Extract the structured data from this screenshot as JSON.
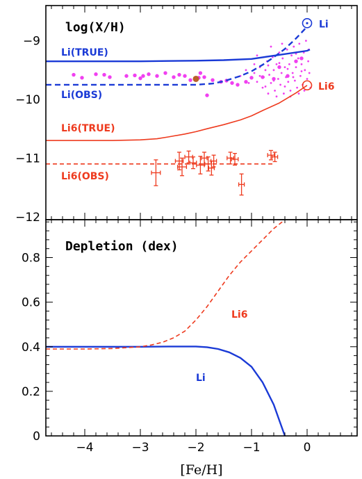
{
  "colors": {
    "li": "#1a3ad6",
    "li6": "#ee3a1e",
    "points": "#f040f0",
    "sun": "#b8602a"
  },
  "chart_data": [
    {
      "type": "line",
      "title": "log(X/H)",
      "xlim": [
        -4.7,
        0.9
      ],
      "ylim": [
        -12.05,
        -8.4
      ],
      "xticks": [
        -4,
        -3,
        -2,
        -1,
        0
      ],
      "yticks": [
        -12,
        -11,
        -10,
        -9
      ],
      "ytick_labels": [
        "−12",
        "−11",
        "−10",
        "−9"
      ],
      "series": [
        {
          "name": "Li(TRUE)",
          "style": "solid",
          "color": "li",
          "x": [
            -4.7,
            -4.0,
            -3.5,
            -3.0,
            -2.5,
            -2.0,
            -1.5,
            -1.0,
            -0.5,
            0.0,
            0.05
          ],
          "y": [
            -9.35,
            -9.35,
            -9.35,
            -9.35,
            -9.345,
            -9.34,
            -9.33,
            -9.31,
            -9.24,
            -9.17,
            -9.15
          ]
        },
        {
          "name": "Li(OBS)",
          "style": "dashed",
          "color": "li",
          "x": [
            -4.7,
            -4.0,
            -3.0,
            -2.5,
            -2.0,
            -1.7,
            -1.5,
            -1.2,
            -1.0,
            -0.8,
            -0.6,
            -0.4,
            -0.2,
            -0.05,
            0.0
          ],
          "y": [
            -9.75,
            -9.75,
            -9.75,
            -9.75,
            -9.75,
            -9.73,
            -9.69,
            -9.6,
            -9.52,
            -9.41,
            -9.28,
            -9.14,
            -8.96,
            -8.81,
            -8.75
          ]
        },
        {
          "name": "Li6(TRUE)",
          "style": "solid",
          "color": "li6",
          "x": [
            -4.7,
            -4.0,
            -3.5,
            -3.0,
            -2.7,
            -2.5,
            -2.2,
            -2.0,
            -1.8,
            -1.5,
            -1.2,
            -1.0,
            -0.8,
            -0.5,
            -0.2,
            0.0
          ],
          "y": [
            -10.7,
            -10.7,
            -10.7,
            -10.69,
            -10.67,
            -10.64,
            -10.59,
            -10.55,
            -10.5,
            -10.43,
            -10.35,
            -10.28,
            -10.19,
            -10.06,
            -9.89,
            -9.76
          ]
        },
        {
          "name": "Li6(OBS)",
          "style": "dashed",
          "color": "li6",
          "x": [
            -4.7,
            -0.6
          ],
          "y": [
            -11.1,
            -11.1
          ]
        }
      ],
      "markers": [
        {
          "label": "Li",
          "x": 0.0,
          "y": -8.7,
          "color": "li"
        },
        {
          "label": "Li6",
          "x": 0.0,
          "y": -9.76,
          "color": "li6"
        }
      ],
      "sun_point": {
        "x": -2.0,
        "y": -9.65
      },
      "li6_obs_points": [
        {
          "x": -2.72,
          "y": -11.25,
          "xerr": 0.08,
          "yerr": 0.22
        },
        {
          "x": -2.3,
          "y": -11.05,
          "xerr": 0.07,
          "yerr": 0.15
        },
        {
          "x": -2.25,
          "y": -11.15,
          "xerr": 0.08,
          "yerr": 0.15
        },
        {
          "x": -2.13,
          "y": -10.98,
          "xerr": 0.07,
          "yerr": 0.1
        },
        {
          "x": -2.05,
          "y": -11.08,
          "xerr": 0.06,
          "yerr": 0.1
        },
        {
          "x": -1.92,
          "y": -11.12,
          "xerr": 0.07,
          "yerr": 0.15
        },
        {
          "x": -1.85,
          "y": -11.0,
          "xerr": 0.05,
          "yerr": 0.1
        },
        {
          "x": -1.78,
          "y": -11.1,
          "xerr": 0.06,
          "yerr": 0.12
        },
        {
          "x": -1.72,
          "y": -11.17,
          "xerr": 0.05,
          "yerr": 0.12
        },
        {
          "x": -1.68,
          "y": -11.05,
          "xerr": 0.05,
          "yerr": 0.1
        },
        {
          "x": -1.38,
          "y": -11.0,
          "xerr": 0.06,
          "yerr": 0.1
        },
        {
          "x": -1.3,
          "y": -11.02,
          "xerr": 0.06,
          "yerr": 0.1
        },
        {
          "x": -1.18,
          "y": -11.45,
          "xerr": 0.05,
          "yerr": 0.18
        },
        {
          "x": -0.65,
          "y": -10.95,
          "xerr": 0.06,
          "yerr": 0.08
        },
        {
          "x": -0.58,
          "y": -10.98,
          "xerr": 0.05,
          "yerr": 0.08
        }
      ],
      "li_obs_points_large": [
        [
          -4.2,
          -9.58
        ],
        [
          -4.05,
          -9.63
        ],
        [
          -3.8,
          -9.57
        ],
        [
          -3.55,
          -9.62
        ],
        [
          -3.25,
          -9.6
        ],
        [
          -3.1,
          -9.59
        ],
        [
          -3.0,
          -9.64
        ],
        [
          -2.85,
          -9.57
        ],
        [
          -2.7,
          -9.6
        ],
        [
          -2.55,
          -9.55
        ],
        [
          -2.4,
          -9.62
        ],
        [
          -2.3,
          -9.58
        ],
        [
          -2.2,
          -9.6
        ],
        [
          -2.1,
          -9.67
        ],
        [
          -1.95,
          -9.63
        ],
        [
          -1.85,
          -9.62
        ],
        [
          -1.8,
          -9.93
        ],
        [
          -1.7,
          -9.67
        ],
        [
          -1.55,
          -9.7
        ],
        [
          -1.45,
          -9.68
        ],
        [
          -1.35,
          -9.72
        ],
        [
          -1.25,
          -9.75
        ],
        [
          -1.1,
          -9.7
        ],
        [
          -1.0,
          -9.63
        ],
        [
          -0.8,
          -9.62
        ],
        [
          -0.6,
          -9.65
        ],
        [
          -0.5,
          -9.45
        ],
        [
          -0.35,
          -9.6
        ],
        [
          -0.2,
          -9.35
        ],
        [
          -0.1,
          -9.3
        ],
        [
          -1.92,
          -9.55
        ],
        [
          -2.95,
          -9.6
        ],
        [
          -3.65,
          -9.58
        ]
      ],
      "li_obs_points_small": [
        [
          -0.95,
          -9.55
        ],
        [
          -0.9,
          -9.7
        ],
        [
          -0.85,
          -9.45
        ],
        [
          -0.8,
          -9.8
        ],
        [
          -0.78,
          -9.62
        ],
        [
          -0.75,
          -9.5
        ],
        [
          -0.72,
          -9.35
        ],
        [
          -0.7,
          -9.9
        ],
        [
          -0.68,
          -9.58
        ],
        [
          -0.65,
          -9.72
        ],
        [
          -0.62,
          -9.28
        ],
        [
          -0.6,
          -9.5
        ],
        [
          -0.58,
          -9.85
        ],
        [
          -0.55,
          -9.4
        ],
        [
          -0.52,
          -9.65
        ],
        [
          -0.5,
          -9.2
        ],
        [
          -0.48,
          -9.75
        ],
        [
          -0.46,
          -9.55
        ],
        [
          -0.44,
          -9.3
        ],
        [
          -0.42,
          -9.9
        ],
        [
          -0.4,
          -9.45
        ],
        [
          -0.38,
          -9.62
        ],
        [
          -0.36,
          -9.15
        ],
        [
          -0.34,
          -9.7
        ],
        [
          -0.32,
          -9.4
        ],
        [
          -0.3,
          -9.85
        ],
        [
          -0.28,
          -9.25
        ],
        [
          -0.26,
          -9.55
        ],
        [
          -0.24,
          -9.1
        ],
        [
          -0.22,
          -9.68
        ],
        [
          -0.2,
          -9.45
        ],
        [
          -0.18,
          -9.8
        ],
        [
          -0.16,
          -9.3
        ],
        [
          -0.14,
          -9.05
        ],
        [
          -0.12,
          -9.6
        ],
        [
          -0.1,
          -9.4
        ],
        [
          -0.08,
          -9.75
        ],
        [
          -0.06,
          -9.2
        ],
        [
          -0.04,
          -9.5
        ],
        [
          -0.02,
          -9.0
        ],
        [
          0.0,
          -9.65
        ],
        [
          0.02,
          -9.35
        ],
        [
          0.04,
          -9.55
        ],
        [
          0.06,
          -9.8
        ],
        [
          -0.9,
          -9.25
        ],
        [
          -1.1,
          -9.5
        ],
        [
          -1.2,
          -9.6
        ],
        [
          -0.65,
          -9.1
        ],
        [
          -0.55,
          -9.95
        ],
        [
          -0.45,
          -9.05
        ],
        [
          -0.3,
          -9.95
        ],
        [
          -0.15,
          -9.9
        ],
        [
          -0.05,
          -9.85
        ],
        [
          0.03,
          -9.15
        ],
        [
          -0.7,
          -9.42
        ],
        [
          -0.6,
          -9.68
        ],
        [
          -0.5,
          -9.38
        ],
        [
          -0.4,
          -9.78
        ],
        [
          -0.25,
          -9.62
        ],
        [
          -0.35,
          -9.48
        ],
        [
          -0.2,
          -9.22
        ],
        [
          -0.1,
          -9.52
        ],
        [
          -0.85,
          -9.6
        ],
        [
          -0.75,
          -9.78
        ],
        [
          -0.95,
          -9.4
        ],
        [
          -1.05,
          -9.72
        ]
      ]
    },
    {
      "type": "line",
      "title": "Depletion (dex)",
      "xlabel": "[Fe/H]",
      "xlim": [
        -4.7,
        0.9
      ],
      "ylim": [
        0,
        0.97
      ],
      "xticks": [
        -4,
        -3,
        -2,
        -1,
        0
      ],
      "xtick_labels": [
        "−4",
        "−3",
        "−2",
        "−1",
        "0"
      ],
      "yticks": [
        0,
        0.2,
        0.4,
        0.6,
        0.8
      ],
      "ytick_labels": [
        "0",
        "0.2",
        "0.4",
        "0.6",
        "0.8"
      ],
      "series": [
        {
          "name": "Li",
          "style": "solid",
          "color": "li",
          "x": [
            -4.7,
            -4.0,
            -3.5,
            -3.0,
            -2.5,
            -2.0,
            -1.8,
            -1.6,
            -1.4,
            -1.2,
            -1.0,
            -0.8,
            -0.6,
            -0.5,
            -0.4
          ],
          "y": [
            0.4,
            0.4,
            0.4,
            0.4,
            0.401,
            0.401,
            0.398,
            0.39,
            0.375,
            0.35,
            0.31,
            0.24,
            0.14,
            0.07,
            0.0
          ]
        },
        {
          "name": "Li6",
          "style": "dashed",
          "color": "li6",
          "x": [
            -4.7,
            -4.0,
            -3.5,
            -3.0,
            -2.8,
            -2.6,
            -2.4,
            -2.2,
            -2.0,
            -1.8,
            -1.6,
            -1.4,
            -1.2,
            -1.0,
            -0.8,
            -0.6,
            -0.4
          ],
          "y": [
            0.39,
            0.39,
            0.392,
            0.4,
            0.408,
            0.42,
            0.44,
            0.47,
            0.52,
            0.58,
            0.65,
            0.72,
            0.78,
            0.83,
            0.88,
            0.93,
            0.97
          ]
        }
      ]
    }
  ],
  "labels": {
    "li_true": "Li(TRUE)",
    "li_obs": "Li(OBS)",
    "li6_true": "Li6(TRUE)",
    "li6_obs": "Li6(OBS)",
    "li_marker": "Li",
    "li6_marker": "Li6",
    "bottom_li6": "Li6",
    "bottom_li": "Li"
  }
}
